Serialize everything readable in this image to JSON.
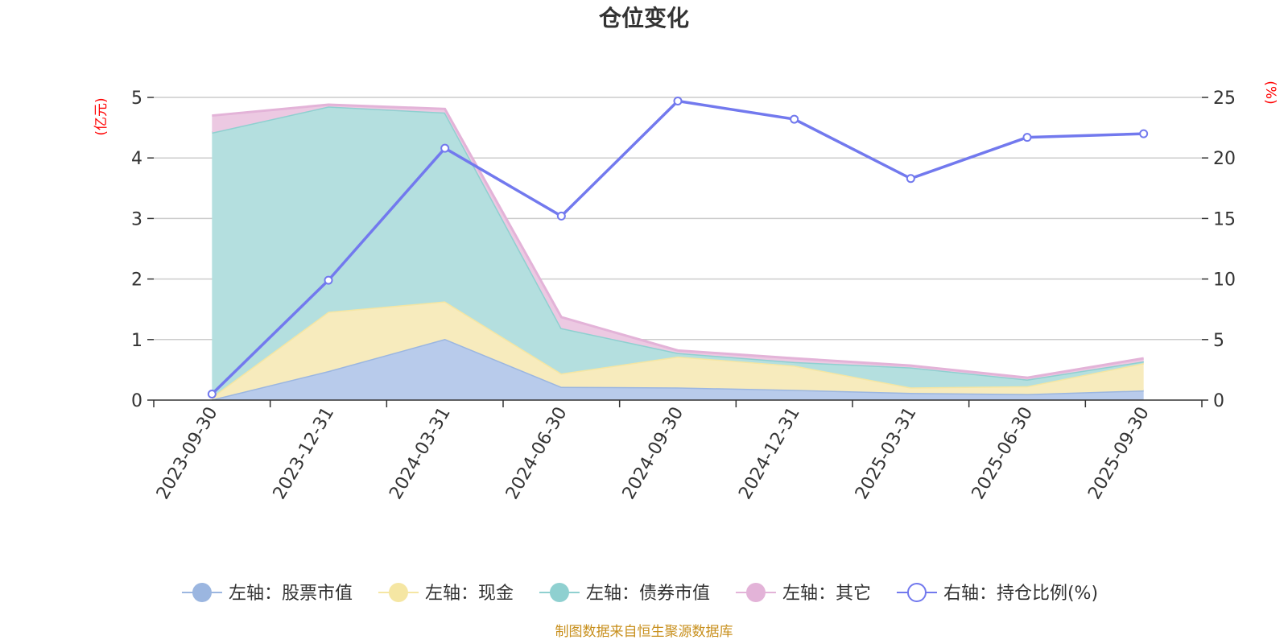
{
  "chart_data": {
    "type": "area",
    "title": "仓位变化",
    "categories": [
      "2023-09-30",
      "2023-12-31",
      "2024-03-31",
      "2024-06-30",
      "2024-09-30",
      "2024-12-31",
      "2025-03-31",
      "2025-06-30",
      "2025-09-30"
    ],
    "left_axis": {
      "unit": "(亿元)",
      "min": 0,
      "max": 5,
      "ticks": [
        "0",
        "1",
        "2",
        "3",
        "4",
        "5"
      ]
    },
    "right_axis": {
      "unit": "(%)",
      "min": 0,
      "max": 25,
      "ticks": [
        "0",
        "5",
        "10",
        "15",
        "20",
        "25"
      ]
    },
    "series": [
      {
        "name": "左轴：股票市值",
        "axis": "left",
        "type": "area",
        "color": "#9bb6e0",
        "fill": "#b8cbeb",
        "values": [
          0.01,
          0.48,
          1.01,
          0.22,
          0.21,
          0.17,
          0.12,
          0.1,
          0.16
        ]
      },
      {
        "name": "左轴：现金",
        "axis": "left",
        "type": "area",
        "color": "#f5e6a3",
        "fill": "#f7ebbd",
        "values": [
          0.04,
          0.98,
          0.62,
          0.22,
          0.51,
          0.4,
          0.09,
          0.13,
          0.45
        ]
      },
      {
        "name": "左轴：债券市值",
        "axis": "left",
        "type": "area",
        "color": "#8fd0d0",
        "fill": "#b4dfdf",
        "values": [
          4.37,
          3.39,
          3.12,
          0.75,
          0.06,
          0.06,
          0.33,
          0.11,
          0.03
        ]
      },
      {
        "name": "左轴：其它",
        "axis": "left",
        "type": "area",
        "color": "#e3b3d8",
        "fill": "#ecc9e2",
        "values": [
          0.28,
          0.03,
          0.06,
          0.18,
          0.04,
          0.06,
          0.03,
          0.03,
          0.05
        ]
      },
      {
        "name": "右轴：持仓比例(%)",
        "axis": "right",
        "type": "line",
        "color": "#7279ee",
        "values": [
          0.5,
          9.9,
          20.8,
          15.2,
          24.7,
          23.2,
          18.3,
          21.7,
          22.0
        ]
      }
    ],
    "legend_position": "bottom",
    "grid": true
  },
  "source_note": "制图数据来自恒生聚源数据库"
}
